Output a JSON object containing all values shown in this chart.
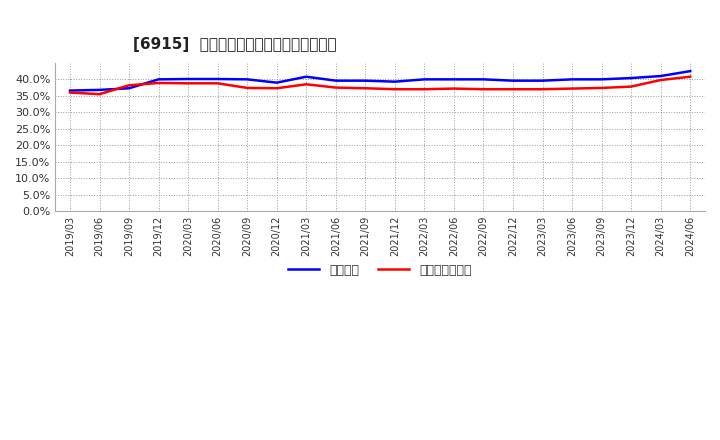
{
  "title": "[6915]  固定比率、固定長期適合率の推移",
  "legend_labels": [
    "固定比率",
    "固定長期適合率"
  ],
  "line_colors": [
    "#0000ff",
    "#ff0000"
  ],
  "ylim": [
    0.0,
    0.45
  ],
  "yticks": [
    0.0,
    0.05,
    0.1,
    0.15,
    0.2,
    0.25,
    0.3,
    0.35,
    0.4
  ],
  "background_color": "#ffffff",
  "x_labels": [
    "2019/03",
    "2019/06",
    "2019/09",
    "2019/12",
    "2020/03",
    "2020/06",
    "2020/09",
    "2020/12",
    "2021/03",
    "2021/06",
    "2021/09",
    "2021/12",
    "2022/03",
    "2022/06",
    "2022/09",
    "2022/12",
    "2023/03",
    "2023/06",
    "2023/09",
    "2023/12",
    "2024/03",
    "2024/06"
  ],
  "fixed_ratio": [
    0.366,
    0.368,
    0.373,
    0.4,
    0.401,
    0.401,
    0.4,
    0.39,
    0.408,
    0.396,
    0.396,
    0.393,
    0.4,
    0.4,
    0.4,
    0.396,
    0.396,
    0.4,
    0.4,
    0.404,
    0.41,
    0.425
  ],
  "fixed_longterm_ratio": [
    0.36,
    0.355,
    0.382,
    0.389,
    0.388,
    0.388,
    0.374,
    0.373,
    0.385,
    0.375,
    0.373,
    0.37,
    0.37,
    0.372,
    0.37,
    0.37,
    0.37,
    0.372,
    0.374,
    0.378,
    0.398,
    0.408
  ]
}
